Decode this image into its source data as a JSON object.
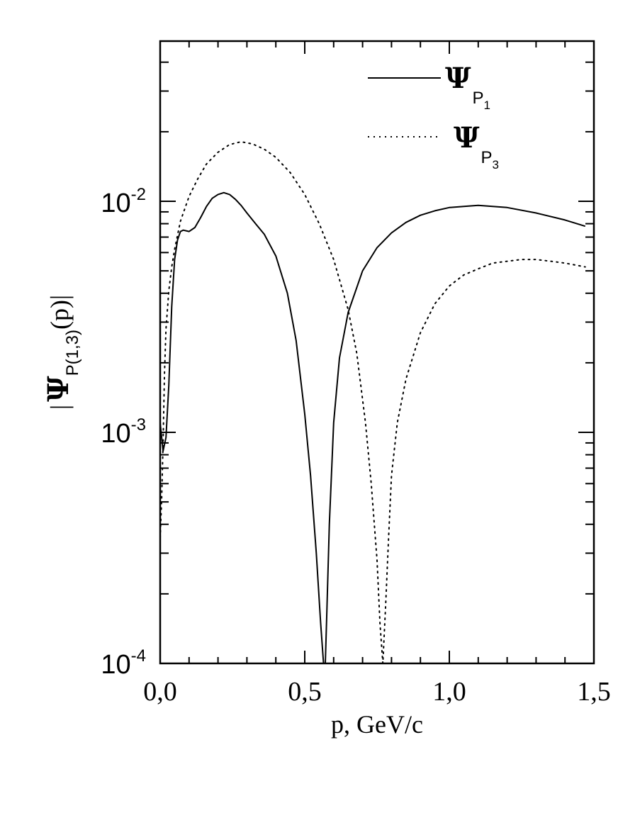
{
  "chart_data": {
    "type": "line",
    "xlabel": "p, GeV/c",
    "ylabel": {
      "prefix": "|",
      "symbol": "Ψ",
      "subscript": "P(1,3)",
      "suffix": "(p)|"
    },
    "xlim": [
      0.0,
      1.5
    ],
    "ylim": [
      0.0001,
      0.05
    ],
    "yscale": "log",
    "x_ticks": [
      "0,0",
      "0,5",
      "1,0",
      "1,5"
    ],
    "y_ticks": [
      {
        "base": "10",
        "exp": "-4"
      },
      {
        "base": "10",
        "exp": "-3"
      },
      {
        "base": "10",
        "exp": "-2"
      }
    ],
    "legend_position": "top-right",
    "series": [
      {
        "name": "Ψ_P1",
        "legend": {
          "symbol": "Ψ",
          "sub": "P",
          "subsub": "1"
        },
        "style": "solid",
        "x": [
          0.0,
          0.01,
          0.02,
          0.03,
          0.04,
          0.05,
          0.06,
          0.07,
          0.08,
          0.1,
          0.12,
          0.14,
          0.16,
          0.18,
          0.2,
          0.22,
          0.24,
          0.26,
          0.28,
          0.3,
          0.33,
          0.36,
          0.4,
          0.44,
          0.47,
          0.5,
          0.52,
          0.54,
          0.555,
          0.565,
          0.571,
          0.576,
          0.585,
          0.6,
          0.62,
          0.65,
          0.7,
          0.75,
          0.8,
          0.85,
          0.9,
          0.95,
          1.0,
          1.05,
          1.1,
          1.15,
          1.2,
          1.3,
          1.4,
          1.47
        ],
        "y": [
          0.0011,
          0.00083,
          0.00095,
          0.0016,
          0.0035,
          0.0056,
          0.0068,
          0.0074,
          0.0075,
          0.0074,
          0.0077,
          0.0085,
          0.0095,
          0.0103,
          0.0107,
          0.0109,
          0.0107,
          0.0102,
          0.0096,
          0.0089,
          0.008,
          0.0072,
          0.0058,
          0.004,
          0.0025,
          0.0012,
          0.00065,
          0.0003,
          0.00015,
          0.0001,
          0.0001,
          0.00016,
          0.0004,
          0.0011,
          0.0021,
          0.0033,
          0.005,
          0.0063,
          0.0073,
          0.0081,
          0.0087,
          0.0091,
          0.0094,
          0.0095,
          0.0096,
          0.0095,
          0.0094,
          0.0089,
          0.0083,
          0.0078
        ]
      },
      {
        "name": "Ψ_P3",
        "legend": {
          "symbol": "Ψ",
          "sub": "P",
          "subsub": "3"
        },
        "style": "dotted",
        "x": [
          0.0,
          0.005,
          0.01,
          0.015,
          0.02,
          0.03,
          0.04,
          0.05,
          0.07,
          0.1,
          0.13,
          0.16,
          0.2,
          0.24,
          0.28,
          0.32,
          0.36,
          0.4,
          0.45,
          0.5,
          0.55,
          0.6,
          0.65,
          0.68,
          0.71,
          0.73,
          0.75,
          0.76,
          0.77,
          0.78,
          0.79,
          0.8,
          0.82,
          0.85,
          0.9,
          0.95,
          1.0,
          1.05,
          1.1,
          1.15,
          1.2,
          1.25,
          1.3,
          1.35,
          1.4,
          1.47
        ],
        "y": [
          0.00035,
          0.0005,
          0.0009,
          0.0018,
          0.0028,
          0.0041,
          0.0052,
          0.0062,
          0.0082,
          0.0105,
          0.0125,
          0.0145,
          0.0163,
          0.0176,
          0.0181,
          0.0177,
          0.0168,
          0.0155,
          0.0133,
          0.0107,
          0.008,
          0.0056,
          0.0034,
          0.0022,
          0.0011,
          0.0006,
          0.00028,
          0.00015,
          0.0001,
          0.00018,
          0.00035,
          0.00065,
          0.0011,
          0.0017,
          0.0027,
          0.0036,
          0.0043,
          0.0048,
          0.0051,
          0.0054,
          0.0055,
          0.0056,
          0.0056,
          0.0055,
          0.0054,
          0.0052
        ]
      }
    ]
  }
}
